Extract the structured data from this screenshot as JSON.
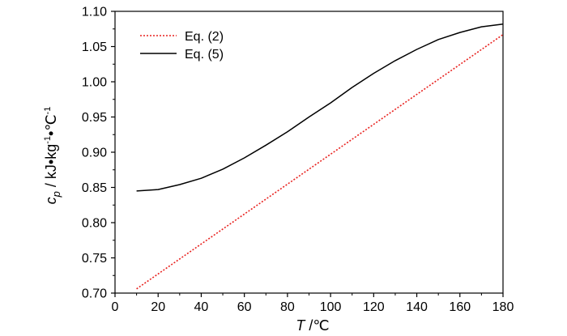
{
  "chart_data": {
    "type": "line",
    "xlabel": {
      "symbol": "T",
      "unit": " /℃"
    },
    "ylabel": {
      "symbol": "c",
      "subscript": "p",
      "unit": " / kJ•kg",
      "sup1": "-1",
      "mid": "•℃",
      "sup2": "-1"
    },
    "xlim": [
      0,
      180
    ],
    "ylim": [
      0.7,
      1.1
    ],
    "x_ticks": [
      0,
      20,
      40,
      60,
      80,
      100,
      120,
      140,
      160,
      180
    ],
    "y_ticks": [
      "0.70",
      "0.75",
      "0.80",
      "0.85",
      "0.90",
      "0.95",
      "1.00",
      "1.05",
      "1.10"
    ],
    "grid": false,
    "legend_position": "top-left",
    "series": [
      {
        "name": "Eq. (2)",
        "color": "#e8211e",
        "style": "dotted",
        "x": [
          10,
          180
        ],
        "y": [
          0.706,
          1.067
        ]
      },
      {
        "name": "Eq. (5)",
        "color": "#000000",
        "style": "solid",
        "x": [
          10,
          20,
          30,
          40,
          50,
          60,
          70,
          80,
          90,
          100,
          110,
          120,
          130,
          140,
          150,
          160,
          170,
          180
        ],
        "y": [
          0.845,
          0.847,
          0.854,
          0.863,
          0.876,
          0.892,
          0.91,
          0.929,
          0.95,
          0.97,
          0.992,
          1.012,
          1.03,
          1.046,
          1.06,
          1.07,
          1.078,
          1.082
        ]
      }
    ]
  }
}
